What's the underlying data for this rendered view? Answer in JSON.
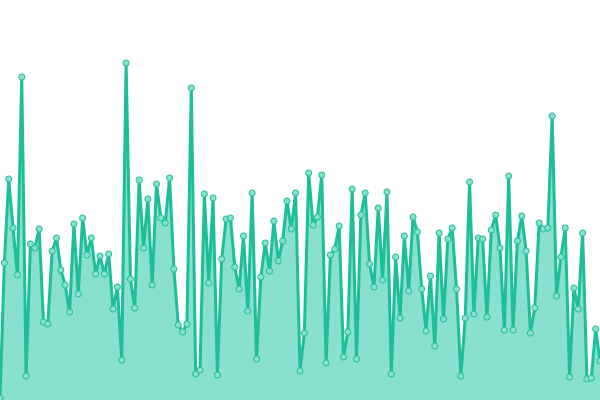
{
  "chart_data": {
    "type": "area",
    "title": "",
    "xlabel": "",
    "ylabel": "",
    "axes_visible": false,
    "grid": false,
    "legend": "none",
    "ylim": [
      0,
      400
    ],
    "colors": {
      "line": "#1dbf99",
      "fill": "#8ae0cf",
      "point_fill": "#8ae0cf",
      "point_stroke": "#1dbf99"
    },
    "values": [
      2,
      137,
      221,
      172,
      125,
      323,
      24,
      156,
      152,
      171,
      78,
      76,
      149,
      162,
      130,
      115,
      88,
      176,
      106,
      182,
      145,
      162,
      126,
      144,
      126,
      146,
      91,
      113,
      40,
      337,
      121,
      92,
      220,
      152,
      201,
      115,
      216,
      182,
      177,
      222,
      131,
      75,
      68,
      76,
      312,
      26,
      30,
      206,
      117,
      202,
      25,
      141,
      181,
      182,
      133,
      111,
      164,
      89,
      207,
      41,
      123,
      157,
      129,
      179,
      139,
      159,
      199,
      171,
      207,
      29,
      67,
      227,
      175,
      183,
      225,
      37,
      145,
      151,
      174,
      43,
      68,
      211,
      41,
      185,
      207,
      136,
      113,
      192,
      120,
      208,
      26,
      143,
      82,
      164,
      109,
      183,
      168,
      111,
      69,
      124,
      54,
      167,
      81,
      161,
      172,
      111,
      24,
      82,
      218,
      86,
      162,
      161,
      83,
      170,
      185,
      152,
      70,
      224,
      70,
      159,
      184,
      149,
      67,
      92,
      177,
      171,
      172,
      284,
      104,
      143,
      172,
      23,
      112,
      91,
      167,
      21,
      22,
      71,
      39
    ]
  }
}
